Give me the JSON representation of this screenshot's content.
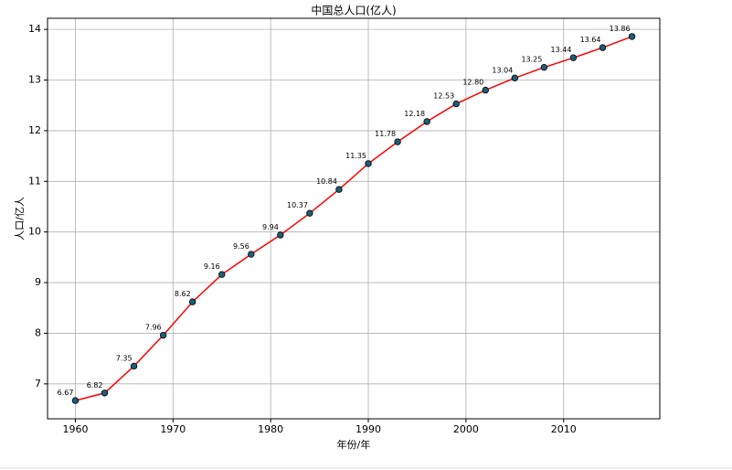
{
  "chart_data": {
    "type": "line",
    "title": "中国总人口(亿人)",
    "x_label": "年份/年",
    "y_label": "人口/亿人",
    "x": [
      1960,
      1963,
      1966,
      1969,
      1972,
      1975,
      1978,
      1981,
      1984,
      1987,
      1990,
      1993,
      1996,
      1999,
      2002,
      2005,
      2008,
      2011,
      2014,
      2017
    ],
    "series": [
      {
        "color": "#ff0000",
        "marker_color": "#1a5e7a",
        "values": [
          6.67,
          6.82,
          7.35,
          7.96,
          8.62,
          9.16,
          9.56,
          9.94,
          10.37,
          10.84,
          11.35,
          11.78,
          12.18,
          12.53,
          12.8,
          13.04,
          13.25,
          13.44,
          13.64,
          13.86
        ],
        "value_labels": [
          "6.67",
          "6.82",
          "7.35",
          "7.96",
          "8.62",
          "9.16",
          "9.56",
          "9.94",
          "10.37",
          "10.84",
          "11.35",
          "11.78",
          "12.18",
          "12.53",
          "12.80",
          "13.04",
          "13.25",
          "13.44",
          "13.64",
          "13.86"
        ]
      }
    ],
    "xlim": [
      1957.15,
      2019.85
    ],
    "ylim": [
      6.3105,
      14.2195
    ],
    "xticks": [
      1960,
      1970,
      1980,
      1990,
      2000,
      2010
    ],
    "yticks": [
      7,
      8,
      9,
      10,
      11,
      12,
      13,
      14
    ],
    "grid": true
  }
}
